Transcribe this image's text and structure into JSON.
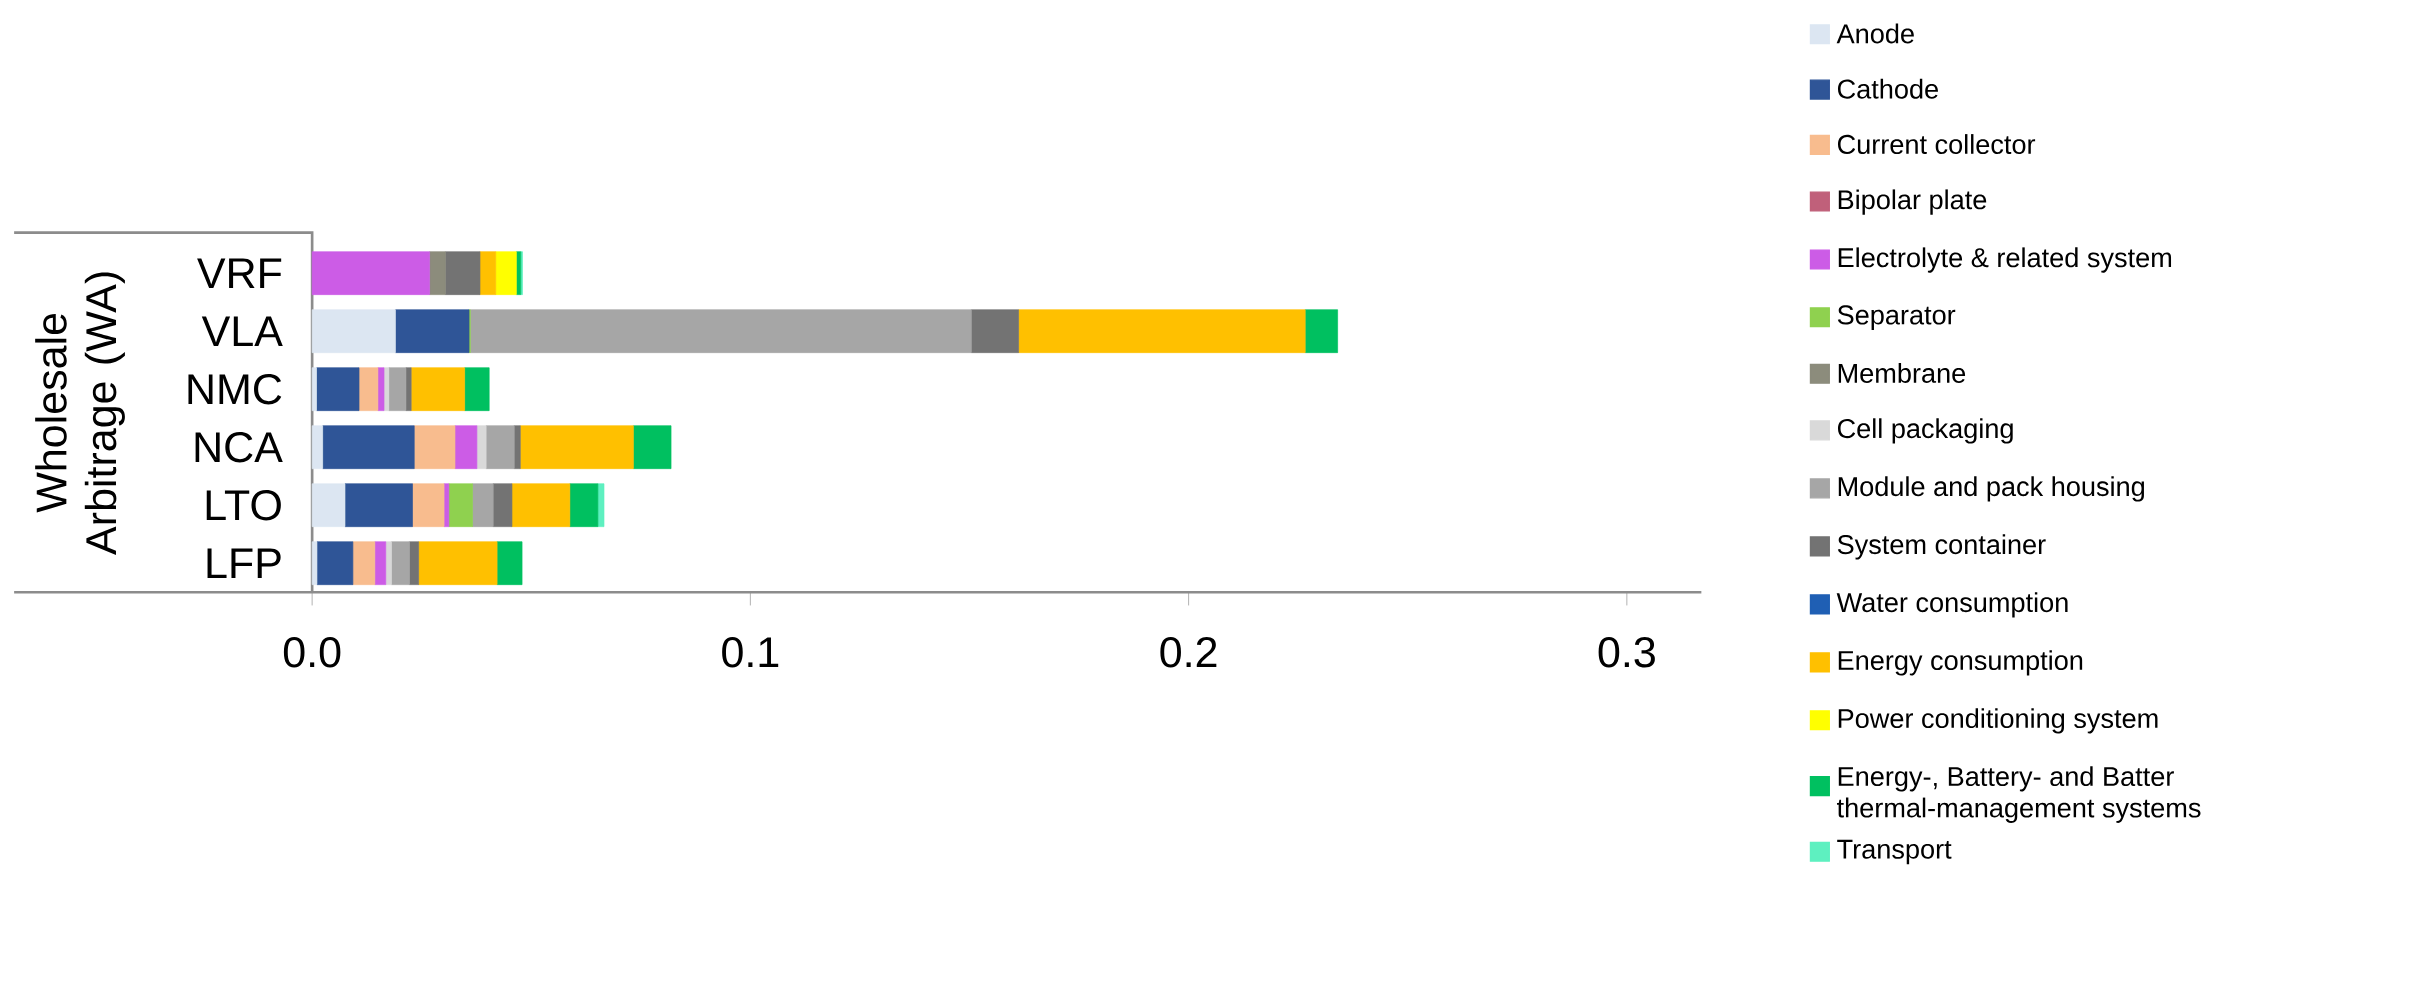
{
  "chart_data": {
    "type": "bar",
    "orientation": "horizontal",
    "stacked": true,
    "ylabel": "Wholesale Arbitrage (WA)",
    "categories": [
      "VRF",
      "VLA",
      "NMC",
      "NCA",
      "LTO",
      "LFP"
    ],
    "series": [
      {
        "name": "Anode",
        "color": "#dce6f2",
        "values": [
          0,
          0.019,
          0.001,
          0.0024,
          0.0075,
          0.0011
        ]
      },
      {
        "name": "Cathode",
        "color": "#2f5597",
        "values": [
          0,
          0.0168,
          0.0097,
          0.0209,
          0.0154,
          0.0082
        ]
      },
      {
        "name": "Current collector",
        "color": "#f8bc8e",
        "values": [
          0,
          0,
          0.0043,
          0.0093,
          0.0072,
          0.005
        ]
      },
      {
        "name": "Bipolar plate",
        "color": "#c0607a",
        "values": [
          0,
          0,
          0,
          0,
          0,
          0
        ]
      },
      {
        "name": "Electrolyte & related system",
        "color": "#cc5ce6",
        "values": [
          0.0268,
          0,
          0.0014,
          0.005,
          0.0011,
          0.0025
        ]
      },
      {
        "name": "Separator",
        "color": "#8fd14f",
        "values": [
          0,
          0.0003,
          0,
          0,
          0.0054,
          0
        ]
      },
      {
        "name": "Membrane",
        "color": "#8c8c7c",
        "values": [
          0.0036,
          0,
          0,
          0,
          0,
          0
        ]
      },
      {
        "name": "Cell packaging",
        "color": "#d9d9d9",
        "values": [
          0,
          0,
          0.0011,
          0.0021,
          0,
          0.0013
        ]
      },
      {
        "name": "Module and pack housing",
        "color": "#a6a6a6",
        "values": [
          0,
          0.1143,
          0.0039,
          0.0064,
          0.0047,
          0.0041
        ]
      },
      {
        "name": "System container",
        "color": "#737373",
        "values": [
          0.0079,
          0.0108,
          0.0012,
          0.0014,
          0.0043,
          0.0021
        ]
      },
      {
        "name": "Water consumption",
        "color": "#1f5fb4",
        "values": [
          0,
          0,
          0,
          0,
          0,
          0
        ]
      },
      {
        "name": "Energy consumption",
        "color": "#ffc000",
        "values": [
          0.0036,
          0.0654,
          0.0122,
          0.0258,
          0.0132,
          0.0179
        ]
      },
      {
        "name": "Power conditioning system",
        "color": "#ffff00",
        "values": [
          0.0047,
          0,
          0,
          0,
          0,
          0
        ]
      },
      {
        "name": "Energy-, Battery- and Batter thermal-management systems",
        "color": "#00c060",
        "values": [
          0.001,
          0.0074,
          0.0056,
          0.0086,
          0.0064,
          0.0057
        ]
      },
      {
        "name": "Transport",
        "color": "#5ef0c0",
        "values": [
          0.0004,
          0,
          0,
          0,
          0.0014,
          0
        ]
      }
    ],
    "xlim": [
      -0.068,
      0.317
    ],
    "xticks": [
      {
        "value": 0,
        "label": "0.0"
      },
      {
        "value": 0.1,
        "label": "0.1"
      },
      {
        "value": 0.2,
        "label": "0.2"
      },
      {
        "value": 0.3,
        "label": "0.3"
      }
    ],
    "legend": "right",
    "grid": false
  }
}
